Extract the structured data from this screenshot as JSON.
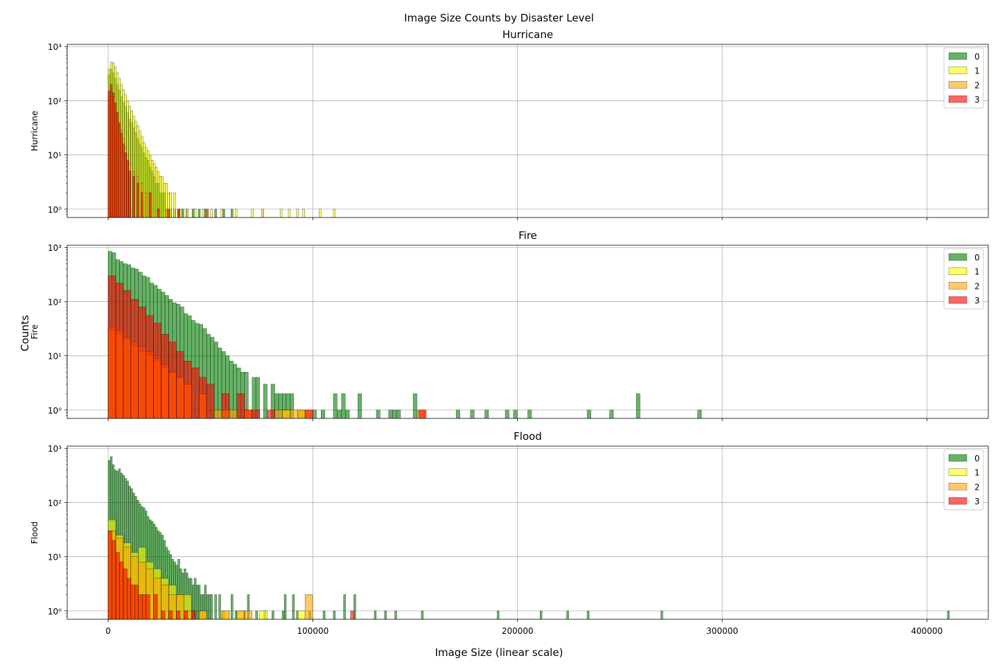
{
  "figure": {
    "suptitle": "Image Size Counts by Disaster Level",
    "xlabel": "Image Size (linear scale)",
    "ylabel": "Counts"
  },
  "chart_data": [
    {
      "type": "histogram",
      "title": "Hurricane",
      "ylabel": "Hurricane",
      "xlim": [
        -20000,
        430000
      ],
      "ylim": [
        0.7,
        1100
      ],
      "yscale": "log",
      "grid": true,
      "legend_position": "top-right",
      "x_ticks": [
        0,
        100000,
        200000,
        300000,
        400000
      ],
      "y_tick_labels": [
        "10⁰",
        "10¹",
        "10²",
        "10³"
      ],
      "series": [
        {
          "name": "0",
          "color": "#008000",
          "bin_width": 1000,
          "x": [
            0,
            1000,
            2000,
            3000,
            4000,
            5000,
            6000,
            7000,
            8000,
            9000,
            10000,
            11000,
            12000,
            13000,
            14000,
            15000,
            16000,
            17000,
            18000,
            19000,
            20000,
            21000,
            22000,
            23000,
            24000,
            25000,
            26000,
            27000,
            28000,
            29000,
            30000,
            32000,
            34000,
            36000,
            38000,
            41000,
            44000,
            47000,
            52000,
            56000,
            60000
          ],
          "values": [
            300,
            380,
            330,
            260,
            200,
            160,
            120,
            95,
            80,
            60,
            45,
            40,
            32,
            26,
            20,
            16,
            14,
            11,
            9,
            8,
            6,
            5,
            4,
            3,
            3,
            2,
            2,
            2,
            1,
            1,
            1,
            1,
            1,
            1,
            1,
            1,
            1,
            1,
            1,
            1,
            1
          ]
        },
        {
          "name": "1",
          "color": "#ffff00",
          "bin_width": 1000,
          "x": [
            0,
            1000,
            2000,
            3000,
            4000,
            5000,
            6000,
            7000,
            8000,
            9000,
            10000,
            11000,
            12000,
            13000,
            14000,
            15000,
            16000,
            17000,
            18000,
            19000,
            20000,
            21000,
            22000,
            23000,
            24000,
            25000,
            26000,
            27000,
            28000,
            29000,
            30000,
            32000,
            35000,
            38000,
            42000,
            46000,
            50000,
            55000,
            62000,
            70000,
            84000,
            88000,
            92000,
            95000,
            103000,
            110000
          ],
          "values": [
            380,
            520,
            500,
            420,
            330,
            260,
            200,
            160,
            130,
            100,
            80,
            65,
            52,
            42,
            35,
            28,
            22,
            17,
            14,
            12,
            10,
            8,
            7,
            6,
            5,
            4,
            4,
            3,
            3,
            2,
            2,
            2,
            1,
            1,
            1,
            1,
            1,
            1,
            1,
            1,
            1,
            1,
            1,
            1,
            1,
            1
          ]
        },
        {
          "name": "2",
          "color": "#ffa500",
          "bin_width": 1000,
          "x": [
            0,
            1000,
            2000,
            3000,
            4000,
            5000,
            6000,
            7000,
            8000,
            9000,
            10000,
            12000,
            14000,
            16000,
            18000,
            20000,
            24000,
            28000,
            34000,
            75000
          ],
          "values": [
            120,
            150,
            120,
            90,
            60,
            40,
            28,
            20,
            14,
            10,
            7,
            5,
            4,
            3,
            2,
            2,
            1,
            1,
            1,
            1
          ]
        },
        {
          "name": "3",
          "color": "#ff0000",
          "bin_width": 1000,
          "x": [
            0,
            1000,
            2000,
            3000,
            4000,
            5000,
            6000,
            7000,
            8000,
            9000,
            10000,
            12000,
            14000,
            16000,
            20000,
            24000,
            29000,
            34000,
            48000
          ],
          "values": [
            150,
            200,
            140,
            90,
            60,
            38,
            25,
            16,
            11,
            8,
            5,
            4,
            3,
            2,
            2,
            1,
            1,
            1,
            1
          ]
        }
      ]
    },
    {
      "type": "histogram",
      "title": "Fire",
      "ylabel": "Fire",
      "xlim": [
        -20000,
        430000
      ],
      "ylim": [
        0.7,
        1100
      ],
      "yscale": "log",
      "grid": true,
      "legend_position": "top-right",
      "x_ticks": [
        0,
        100000,
        200000,
        300000,
        400000
      ],
      "y_tick_labels": [
        "10⁰",
        "10¹",
        "10²",
        "10³"
      ],
      "series": [
        {
          "name": "0",
          "color": "#008000",
          "bin_width": 1850,
          "x": [
            0,
            1850,
            3700,
            5550,
            7400,
            9250,
            11100,
            12950,
            14800,
            16650,
            18500,
            20350,
            22200,
            24050,
            25900,
            27750,
            29600,
            31450,
            33300,
            35150,
            37000,
            38850,
            40700,
            42550,
            44400,
            46250,
            48100,
            49950,
            51800,
            53650,
            55500,
            57350,
            59200,
            61050,
            62900,
            64750,
            66600,
            70300,
            72150,
            75850,
            79550,
            81400,
            83250,
            85100,
            86950,
            88800,
            92500,
            94350,
            99900,
            104000,
            110000,
            112000,
            114000,
            116000,
            122000,
            131000,
            137000,
            139000,
            141000,
            149000,
            170000,
            177000,
            184000,
            194000,
            198000,
            205000,
            234000,
            245000,
            258000,
            288000
          ],
          "values": [
            850,
            800,
            600,
            550,
            500,
            480,
            420,
            400,
            350,
            300,
            280,
            220,
            200,
            170,
            150,
            130,
            110,
            95,
            90,
            80,
            60,
            55,
            45,
            40,
            38,
            32,
            25,
            22,
            18,
            14,
            12,
            10,
            8,
            7,
            6,
            5,
            5,
            4,
            4,
            3,
            3,
            2,
            2,
            2,
            2,
            2,
            1,
            1,
            1,
            1,
            2,
            1,
            2,
            1,
            2,
            1,
            1,
            1,
            1,
            2,
            1,
            1,
            1,
            1,
            1,
            1,
            1,
            1,
            2,
            1
          ]
        },
        {
          "name": "1",
          "color": "#ffff00",
          "bin_width": 3700,
          "x": [
            0,
            3700,
            7400,
            11100,
            14800,
            18500,
            22200,
            25900,
            29600,
            33300,
            37000,
            44400,
            55500,
            66600,
            85100,
            92500
          ],
          "values": [
            30,
            25,
            20,
            15,
            12,
            10,
            8,
            6,
            5,
            4,
            3,
            2,
            1,
            1,
            1,
            1
          ]
        },
        {
          "name": "2",
          "color": "#ffa500",
          "bin_width": 3700,
          "x": [
            0,
            3700,
            7400,
            11100,
            14800,
            18500,
            22200,
            25900,
            29600,
            33300,
            37000,
            44400,
            51800,
            59200,
            66600,
            81400,
            85100,
            88800,
            92500,
            96200,
            151000
          ],
          "values": [
            35,
            30,
            22,
            18,
            15,
            12,
            9,
            7,
            5,
            4,
            3,
            2,
            1,
            1,
            1,
            1,
            1,
            1,
            1,
            1,
            1
          ]
        },
        {
          "name": "3",
          "color": "#ff0000",
          "bin_width": 3700,
          "x": [
            0,
            3700,
            7400,
            11100,
            14800,
            18500,
            22200,
            25900,
            29600,
            33300,
            37000,
            40700,
            44400,
            48100,
            55500,
            62900,
            66600,
            70300,
            77700,
            96200,
            151700
          ],
          "values": [
            300,
            220,
            160,
            110,
            80,
            55,
            40,
            25,
            18,
            12,
            8,
            6,
            4,
            3,
            2,
            2,
            1,
            1,
            1,
            1,
            1
          ]
        }
      ]
    },
    {
      "type": "histogram",
      "title": "Flood",
      "ylabel": "Flood",
      "xlim": [
        -20000,
        430000
      ],
      "ylim": [
        0.7,
        1100
      ],
      "yscale": "log",
      "grid": true,
      "legend_position": "top-right",
      "x_ticks": [
        0,
        100000,
        200000,
        300000,
        400000
      ],
      "y_tick_labels": [
        "10⁰",
        "10¹",
        "10²",
        "10³"
      ],
      "series": [
        {
          "name": "0",
          "color": "#008000",
          "bin_width": 1000,
          "x": [
            0,
            1000,
            2000,
            3000,
            4000,
            5000,
            6000,
            7000,
            8000,
            9000,
            10000,
            11000,
            12000,
            13000,
            14000,
            15000,
            16000,
            17000,
            18000,
            19000,
            20000,
            21000,
            22000,
            23000,
            24000,
            25000,
            26000,
            27000,
            28000,
            29000,
            30000,
            31000,
            32000,
            33000,
            34000,
            35000,
            36000,
            37000,
            38000,
            39000,
            40000,
            41000,
            42000,
            43000,
            44000,
            45000,
            46000,
            47000,
            48000,
            49000,
            50000,
            52000,
            54000,
            56000,
            60000,
            62000,
            66000,
            68000,
            72000,
            76000,
            80000,
            85000,
            86000,
            90000,
            92000,
            98000,
            105000,
            110000,
            115000,
            120000,
            130000,
            135000,
            140000,
            153000,
            190000,
            211000,
            224000,
            234000,
            270000,
            410000
          ],
          "values": [
            600,
            700,
            500,
            400,
            380,
            420,
            350,
            320,
            280,
            250,
            200,
            180,
            150,
            130,
            110,
            95,
            85,
            80,
            70,
            55,
            48,
            45,
            40,
            35,
            30,
            28,
            25,
            20,
            15,
            13,
            11,
            9,
            8,
            7,
            9,
            6,
            5,
            6,
            5,
            4,
            4,
            3,
            4,
            3,
            3,
            2,
            2,
            3,
            2,
            2,
            2,
            2,
            2,
            1,
            2,
            1,
            1,
            2,
            1,
            1,
            1,
            1,
            2,
            2,
            1,
            1,
            1,
            1,
            2,
            2,
            1,
            1,
            1,
            1,
            1,
            1,
            1,
            1,
            1,
            1
          ]
        },
        {
          "name": "1",
          "color": "#ffff00",
          "bin_width": 3700,
          "x": [
            0,
            3700,
            7400,
            11100,
            14800,
            18500,
            22200,
            25900,
            29600,
            33300,
            37000,
            44400,
            55500,
            62900,
            74000,
            92500
          ],
          "values": [
            48,
            25,
            18,
            12,
            15,
            8,
            6,
            4,
            3,
            2,
            2,
            1,
            1,
            1,
            1,
            1
          ]
        },
        {
          "name": "2",
          "color": "#ffa500",
          "bin_width": 3700,
          "x": [
            0,
            3700,
            7400,
            11100,
            14800,
            18500,
            22200,
            25900,
            29600,
            33300,
            37000,
            44400,
            55500,
            62900,
            66600,
            96200
          ],
          "values": [
            30,
            22,
            15,
            10,
            8,
            6,
            4,
            3,
            2,
            2,
            1,
            1,
            1,
            1,
            1,
            2
          ]
        },
        {
          "name": "3",
          "color": "#ff0000",
          "bin_width": 1850,
          "x": [
            0,
            1850,
            3700,
            5550,
            7400,
            9250,
            11100,
            12950,
            14800,
            16650,
            18500,
            22200,
            25900,
            29600,
            33300,
            37000,
            40700,
            118400
          ],
          "values": [
            30,
            20,
            12,
            8,
            6,
            4,
            3,
            3,
            2,
            2,
            2,
            2,
            1,
            1,
            1,
            1,
            1,
            1
          ]
        }
      ]
    }
  ]
}
